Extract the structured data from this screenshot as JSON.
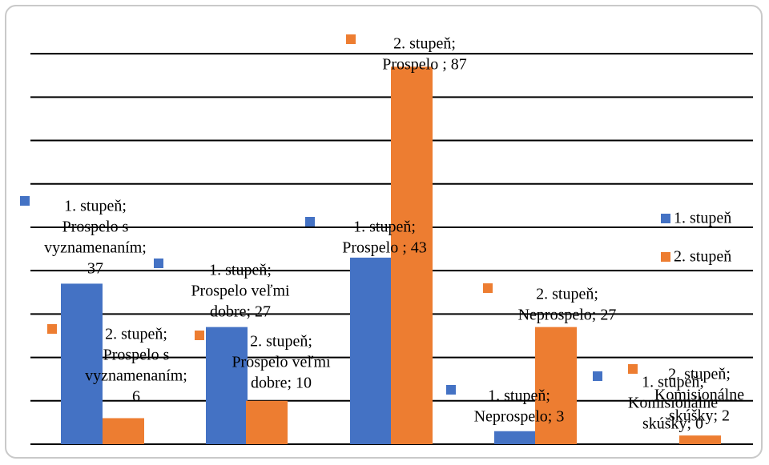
{
  "chart_data": {
    "type": "bar",
    "categories": [
      "Prospelo s vyznamenaním",
      "Prospelo veľmi dobre",
      "Prospelo",
      "Neprospelo",
      "Komisionálne skúšky"
    ],
    "ylim": [
      0,
      95
    ],
    "grid": true,
    "legend_position": "right",
    "series": [
      {
        "name": "1. stupeň",
        "color": "#4472c4",
        "values": [
          37,
          27,
          43,
          3,
          0
        ],
        "labels": [
          [
            "1. stupeň;",
            "Prospelo s",
            "vyznamenaním;",
            "37"
          ],
          [
            "1. stupeň;",
            "Prospelo veľmi",
            "dobre; 27"
          ],
          [
            "1. stupeň;",
            "Prospelo ; 43"
          ],
          [
            "1. stupeň;",
            "Neprospelo; 3"
          ],
          [
            "1. stupeň;",
            "Komisionálne",
            "skúšky; 0"
          ]
        ]
      },
      {
        "name": "2. stupeň",
        "color": "#ed7d31",
        "values": [
          6,
          10,
          87,
          27,
          2
        ],
        "labels": [
          [
            "2. stupeň;",
            "Prospelo s",
            "vyznamenaním;",
            "6"
          ],
          [
            "2. stupeň;",
            "Prospelo veľmi",
            "dobre; 10"
          ],
          [
            "2. stupeň;",
            "Prospelo ; 87"
          ],
          [
            "2. stupeň;",
            "Neprospelo; 27"
          ],
          [
            "2. stupeň;",
            "Komisionálne",
            "skúšky; 2"
          ]
        ]
      }
    ]
  }
}
